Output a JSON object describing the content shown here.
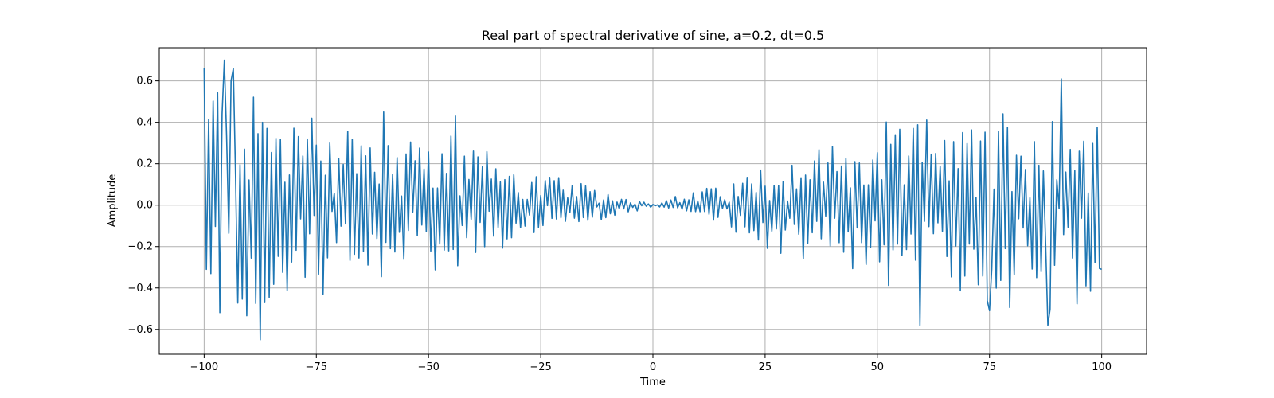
{
  "chart_data": {
    "type": "line",
    "title": "Real part of spectral derivative of sine, a=0.2, dt=0.5",
    "xlabel": "Time",
    "ylabel": "Amplitude",
    "xlim": [
      -110,
      110
    ],
    "ylim": [
      -0.72,
      0.76
    ],
    "xticks": [
      -100,
      -75,
      -50,
      -25,
      0,
      25,
      50,
      75,
      100
    ],
    "xtick_labels": [
      "−100",
      "−75",
      "−50",
      "−25",
      "0",
      "25",
      "50",
      "75",
      "100"
    ],
    "yticks": [
      -0.6,
      -0.4,
      -0.2,
      0.0,
      0.2,
      0.4,
      0.6
    ],
    "ytick_labels": [
      "−0.6",
      "−0.4",
      "−0.2",
      "0.0",
      "0.2",
      "0.4",
      "0.6"
    ],
    "grid": true,
    "color": "#1f77b4",
    "series": [
      {
        "x_start": -100,
        "x_step": 0.5,
        "envelope_points": [
          [
            -100,
            0.66
          ],
          [
            -90,
            0.55
          ],
          [
            -80,
            0.45
          ],
          [
            -70,
            0.42
          ],
          [
            -60,
            0.38
          ],
          [
            -50,
            0.33
          ],
          [
            -40,
            0.28
          ],
          [
            -30,
            0.2
          ],
          [
            -20,
            0.12
          ],
          [
            -10,
            0.06
          ],
          [
            0,
            0.01
          ],
          [
            10,
            0.07
          ],
          [
            20,
            0.14
          ],
          [
            30,
            0.24
          ],
          [
            40,
            0.3
          ],
          [
            50,
            0.34
          ],
          [
            60,
            0.38
          ],
          [
            70,
            0.42
          ],
          [
            80,
            0.46
          ],
          [
            90,
            0.5
          ],
          [
            100,
            0.4
          ]
        ],
        "notable_points": [
          [
            -100,
            0.66
          ],
          [
            -99.5,
            -0.31
          ],
          [
            -95.5,
            0.7
          ],
          [
            -93.5,
            0.66
          ],
          [
            -87.5,
            -0.65
          ],
          [
            -87,
            0.4
          ],
          [
            -60,
            0.45
          ],
          [
            -44,
            0.43
          ],
          [
            59.5,
            -0.58
          ],
          [
            75,
            -0.51
          ],
          [
            88,
            -0.58
          ],
          [
            91,
            0.61
          ],
          [
            100,
            -0.31
          ]
        ]
      }
    ]
  }
}
